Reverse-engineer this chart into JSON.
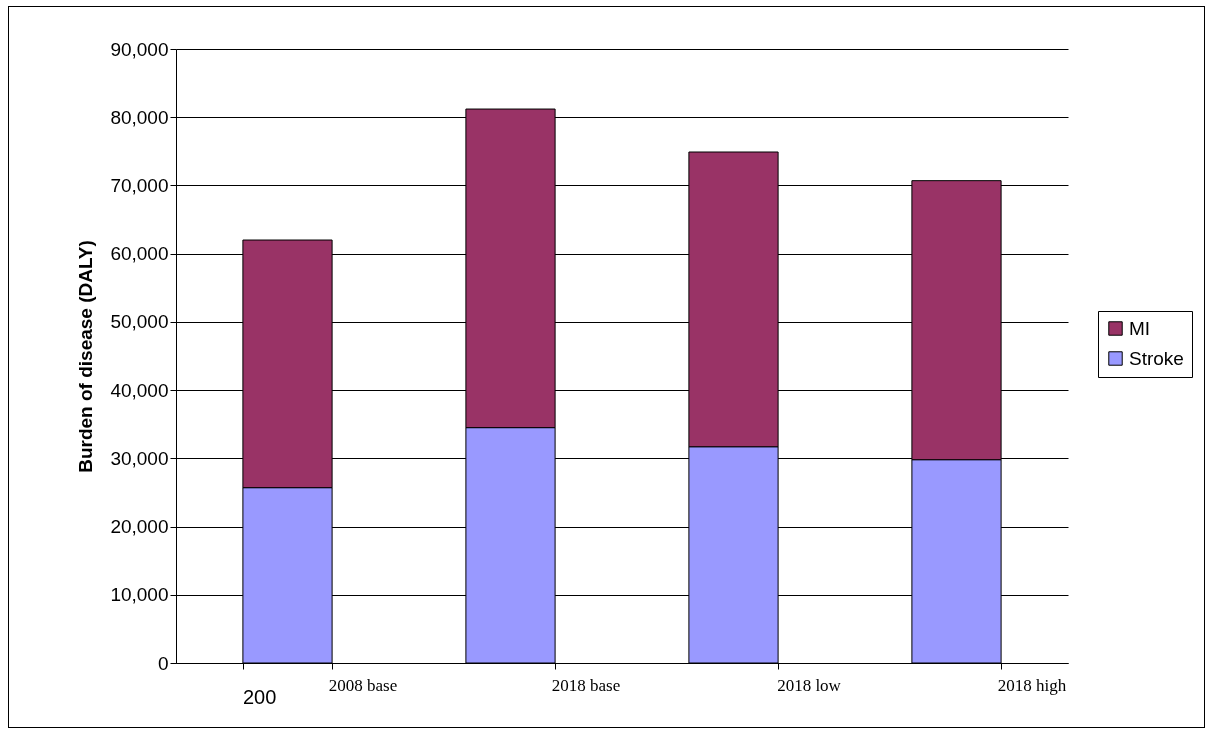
{
  "chart_data": {
    "type": "bar",
    "stacked": true,
    "ylabel": "Burden of disease (DALY)",
    "categories": [
      "2008 base",
      "2018 base",
      "2018 low",
      "2018 high"
    ],
    "series": [
      {
        "name": "Stroke",
        "color": "#9999ff",
        "values": [
          25700,
          34500,
          31700,
          29800
        ]
      },
      {
        "name": "MI",
        "color": "#993366",
        "values": [
          36300,
          46700,
          43200,
          40900
        ]
      }
    ],
    "ylim": [
      0,
      90000
    ],
    "yticks": [
      {
        "value": 0,
        "label": "0"
      },
      {
        "value": 10000,
        "label": "10,000"
      },
      {
        "value": 20000,
        "label": "20,000"
      },
      {
        "value": 30000,
        "label": "30,000"
      },
      {
        "value": 40000,
        "label": "40,000"
      },
      {
        "value": 50000,
        "label": "50,000"
      },
      {
        "value": 60000,
        "label": "60,000"
      },
      {
        "value": 70000,
        "label": "70,000"
      },
      {
        "value": 80000,
        "label": "80,000"
      },
      {
        "value": 90000,
        "label": "90,000"
      }
    ],
    "grid": "y",
    "legend": "right",
    "annotations": [
      "200"
    ]
  }
}
